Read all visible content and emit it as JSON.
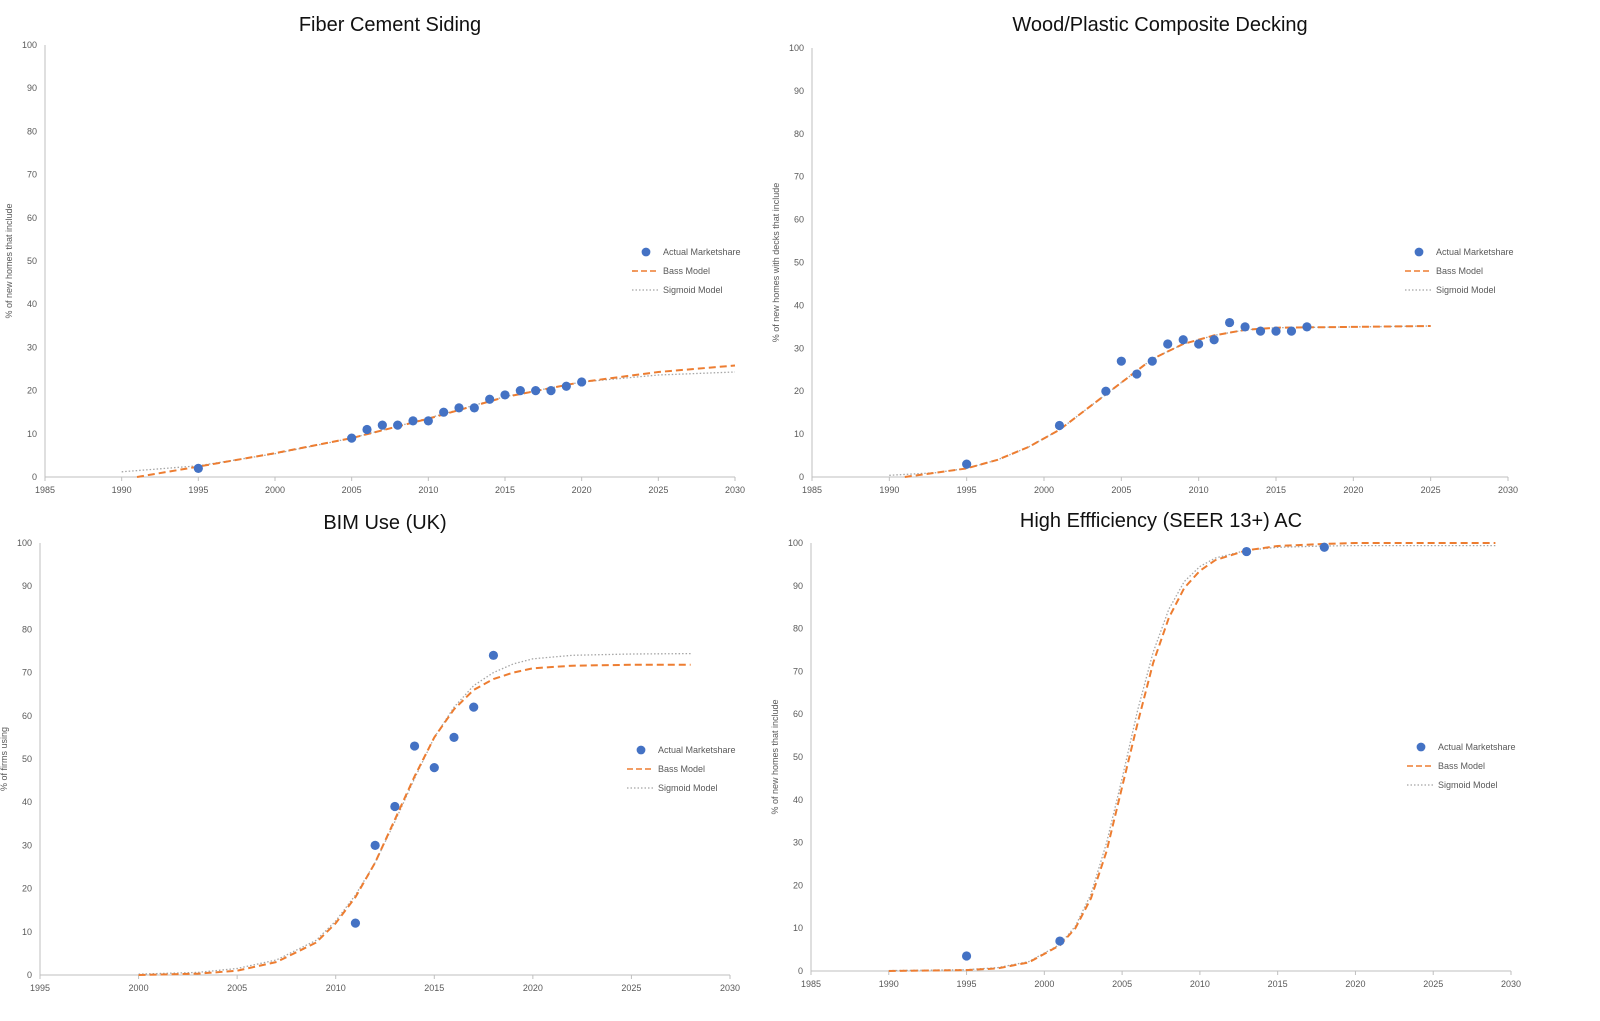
{
  "colors": {
    "actual": "#4472C4",
    "bass": "#ED7D31",
    "sigmoid": "#A5A5A5",
    "axis": "#BFBFBF",
    "text": "#595959"
  },
  "legend": {
    "actual": "Actual Marketshare",
    "bass": "Bass Model",
    "sigmoid": "Sigmoid Model"
  },
  "chart_data": [
    {
      "type": "scatter",
      "title": "Fiber Cement Siding",
      "ylabel": "% of new homes that include",
      "xlabel": "",
      "xlim": [
        1985,
        2030
      ],
      "ylim": [
        0,
        100
      ],
      "x_ticks": [
        1985,
        1990,
        1995,
        2000,
        2005,
        2010,
        2015,
        2020,
        2025,
        2030
      ],
      "y_ticks": [
        0,
        10,
        20,
        30,
        40,
        50,
        60,
        70,
        80,
        90,
        100
      ],
      "legend_position": "right",
      "series": [
        {
          "name": "Actual Marketshare",
          "kind": "points",
          "points": [
            [
              1995,
              2
            ],
            [
              2005,
              9
            ],
            [
              2006,
              11
            ],
            [
              2007,
              12
            ],
            [
              2008,
              12
            ],
            [
              2009,
              13
            ],
            [
              2010,
              13
            ],
            [
              2011,
              15
            ],
            [
              2012,
              16
            ],
            [
              2013,
              16
            ],
            [
              2014,
              18
            ],
            [
              2015,
              19
            ],
            [
              2016,
              20
            ],
            [
              2017,
              20
            ],
            [
              2018,
              20
            ],
            [
              2019,
              21
            ],
            [
              2020,
              22
            ]
          ]
        },
        {
          "name": "Bass Model",
          "kind": "dashed",
          "points": [
            [
              1991,
              0
            ],
            [
              1995,
              2.4
            ],
            [
              2000,
              5.5
            ],
            [
              2005,
              9
            ],
            [
              2010,
              13.5
            ],
            [
              2015,
              18.5
            ],
            [
              2020,
              22
            ],
            [
              2025,
              24.3
            ],
            [
              2030,
              25.8
            ]
          ]
        },
        {
          "name": "Sigmoid Model",
          "kind": "dotted",
          "points": [
            [
              1990,
              1.2
            ],
            [
              1995,
              2.6
            ],
            [
              2000,
              5.4
            ],
            [
              2005,
              9
            ],
            [
              2010,
              13.6
            ],
            [
              2015,
              18.6
            ],
            [
              2020,
              22
            ],
            [
              2025,
              23.6
            ],
            [
              2030,
              24.3
            ]
          ]
        }
      ]
    },
    {
      "type": "scatter",
      "title": "Wood/Plastic Composite Decking",
      "ylabel": "% of new homes with decks that include",
      "xlabel": "",
      "xlim": [
        1985,
        2030
      ],
      "ylim": [
        0,
        100
      ],
      "x_ticks": [
        1985,
        1990,
        1995,
        2000,
        2005,
        2010,
        2015,
        2020,
        2025,
        2030
      ],
      "y_ticks": [
        0,
        10,
        20,
        30,
        40,
        50,
        60,
        70,
        80,
        90,
        100
      ],
      "legend_position": "right",
      "series": [
        {
          "name": "Actual Marketshare",
          "kind": "points",
          "points": [
            [
              1995,
              3
            ],
            [
              2001,
              12
            ],
            [
              2004,
              20
            ],
            [
              2005,
              27
            ],
            [
              2006,
              24
            ],
            [
              2007,
              27
            ],
            [
              2008,
              31
            ],
            [
              2009,
              32
            ],
            [
              2010,
              31
            ],
            [
              2011,
              32
            ],
            [
              2012,
              36
            ],
            [
              2013,
              35
            ],
            [
              2014,
              34
            ],
            [
              2015,
              34
            ],
            [
              2016,
              34
            ],
            [
              2017,
              35
            ]
          ]
        },
        {
          "name": "Bass Model",
          "kind": "dashed",
          "points": [
            [
              1991,
              0
            ],
            [
              1993,
              1
            ],
            [
              1995,
              2
            ],
            [
              1997,
              4
            ],
            [
              1999,
              7
            ],
            [
              2001,
              11
            ],
            [
              2003,
              16.5
            ],
            [
              2005,
              22
            ],
            [
              2007,
              27.5
            ],
            [
              2009,
              31
            ],
            [
              2011,
              33
            ],
            [
              2013,
              34.3
            ],
            [
              2015,
              34.8
            ],
            [
              2020,
              35
            ],
            [
              2025,
              35.2
            ]
          ]
        },
        {
          "name": "Sigmoid Model",
          "kind": "dotted",
          "points": [
            [
              1990,
              0.4
            ],
            [
              1993,
              1
            ],
            [
              1995,
              2
            ],
            [
              1997,
              4
            ],
            [
              1999,
              7
            ],
            [
              2001,
              11
            ],
            [
              2003,
              16.5
            ],
            [
              2005,
              22
            ],
            [
              2007,
              27.5
            ],
            [
              2009,
              31
            ],
            [
              2011,
              33
            ],
            [
              2013,
              34.3
            ],
            [
              2015,
              34.8
            ],
            [
              2020,
              35
            ],
            [
              2025,
              35.2
            ]
          ]
        }
      ]
    },
    {
      "type": "scatter",
      "title": "BIM Use (UK)",
      "ylabel": "% of firms using",
      "xlabel": "",
      "xlim": [
        1995,
        2030
      ],
      "ylim": [
        0,
        100
      ],
      "x_ticks": [
        1995,
        2000,
        2005,
        2010,
        2015,
        2020,
        2025,
        2030
      ],
      "y_ticks": [
        0,
        10,
        20,
        30,
        40,
        50,
        60,
        70,
        80,
        90,
        100
      ],
      "legend_position": "right",
      "series": [
        {
          "name": "Actual Marketshare",
          "kind": "points",
          "points": [
            [
              2011,
              12
            ],
            [
              2012,
              30
            ],
            [
              2013,
              39
            ],
            [
              2014,
              53
            ],
            [
              2015,
              48
            ],
            [
              2016,
              55
            ],
            [
              2017,
              62
            ],
            [
              2018,
              74
            ]
          ]
        },
        {
          "name": "Bass Model",
          "kind": "dashed",
          "points": [
            [
              2000,
              0
            ],
            [
              2003,
              0.3
            ],
            [
              2005,
              1
            ],
            [
              2007,
              3
            ],
            [
              2009,
              7.5
            ],
            [
              2010,
              12
            ],
            [
              2011,
              18
            ],
            [
              2012,
              26
            ],
            [
              2013,
              36
            ],
            [
              2014,
              46
            ],
            [
              2015,
              55
            ],
            [
              2016,
              61.5
            ],
            [
              2017,
              66
            ],
            [
              2018,
              68.5
            ],
            [
              2019,
              70
            ],
            [
              2020,
              71
            ],
            [
              2022,
              71.6
            ],
            [
              2025,
              71.8
            ],
            [
              2028,
              71.8
            ]
          ]
        },
        {
          "name": "Sigmoid Model",
          "kind": "dotted",
          "points": [
            [
              2000,
              0.2
            ],
            [
              2003,
              0.6
            ],
            [
              2005,
              1.5
            ],
            [
              2007,
              3.5
            ],
            [
              2009,
              8
            ],
            [
              2010,
              12.5
            ],
            [
              2011,
              18.5
            ],
            [
              2012,
              26
            ],
            [
              2013,
              35.5
            ],
            [
              2014,
              45.5
            ],
            [
              2015,
              55
            ],
            [
              2016,
              62
            ],
            [
              2017,
              67
            ],
            [
              2018,
              70
            ],
            [
              2019,
              72
            ],
            [
              2020,
              73.2
            ],
            [
              2022,
              74
            ],
            [
              2025,
              74.3
            ],
            [
              2028,
              74.4
            ]
          ]
        }
      ]
    },
    {
      "type": "scatter",
      "title": "High Effficiency (SEER 13+) AC",
      "ylabel": "% of new homes that include",
      "xlabel": "",
      "xlim": [
        1985,
        2030
      ],
      "ylim": [
        0,
        100
      ],
      "x_ticks": [
        1985,
        1990,
        1995,
        2000,
        2005,
        2010,
        2015,
        2020,
        2025,
        2030
      ],
      "y_ticks": [
        0,
        10,
        20,
        30,
        40,
        50,
        60,
        70,
        80,
        90,
        100
      ],
      "legend_position": "right",
      "series": [
        {
          "name": "Actual Marketshare",
          "kind": "points",
          "points": [
            [
              1995,
              3.5
            ],
            [
              2001,
              7
            ],
            [
              2013,
              98
            ],
            [
              2018,
              99
            ]
          ]
        },
        {
          "name": "Bass Model",
          "kind": "dashed",
          "points": [
            [
              1990,
              0
            ],
            [
              1995,
              0.2
            ],
            [
              1997,
              0.6
            ],
            [
              1999,
              2
            ],
            [
              2001,
              6
            ],
            [
              2002,
              10
            ],
            [
              2003,
              17
            ],
            [
              2004,
              28
            ],
            [
              2005,
              43
            ],
            [
              2006,
              58
            ],
            [
              2007,
              72
            ],
            [
              2008,
              82.5
            ],
            [
              2009,
              89.5
            ],
            [
              2010,
              93.5
            ],
            [
              2011,
              96
            ],
            [
              2013,
              98.3
            ],
            [
              2015,
              99.3
            ],
            [
              2018,
              99.8
            ],
            [
              2020,
              100
            ],
            [
              2029,
              100
            ]
          ]
        },
        {
          "name": "Sigmoid Model",
          "kind": "dotted",
          "points": [
            [
              1990,
              0.1
            ],
            [
              1995,
              0.3
            ],
            [
              1997,
              0.8
            ],
            [
              1999,
              2.2
            ],
            [
              2001,
              6.2
            ],
            [
              2002,
              10.5
            ],
            [
              2003,
              18
            ],
            [
              2004,
              30
            ],
            [
              2005,
              45
            ],
            [
              2006,
              61
            ],
            [
              2007,
              74.5
            ],
            [
              2008,
              84.5
            ],
            [
              2009,
              91
            ],
            [
              2010,
              94.5
            ],
            [
              2011,
              96.5
            ],
            [
              2013,
              98.3
            ],
            [
              2015,
              99
            ],
            [
              2018,
              99.3
            ],
            [
              2020,
              99.4
            ],
            [
              2029,
              99.4
            ]
          ]
        }
      ]
    }
  ]
}
